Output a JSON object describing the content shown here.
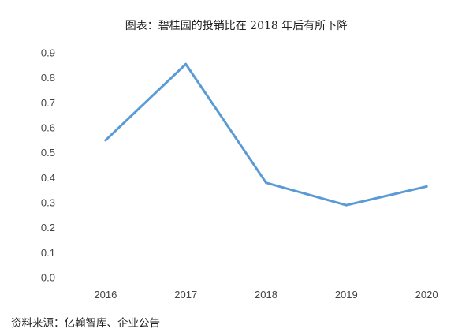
{
  "chart_data": {
    "type": "line",
    "title": "图表：碧桂园的投销比在 2018 年后有所下降",
    "categories": [
      "2016",
      "2017",
      "2018",
      "2019",
      "2020"
    ],
    "values": [
      0.55,
      0.855,
      0.38,
      0.29,
      0.365
    ],
    "xlabel": "",
    "ylabel": "",
    "ylim": [
      0,
      0.9
    ],
    "yticks": [
      "0.0",
      "0.1",
      "0.2",
      "0.3",
      "0.4",
      "0.5",
      "0.6",
      "0.7",
      "0.8",
      "0.9"
    ],
    "grid": false,
    "line_color": "#5b9bd5",
    "source": "资料来源：亿翰智库、企业公告"
  }
}
